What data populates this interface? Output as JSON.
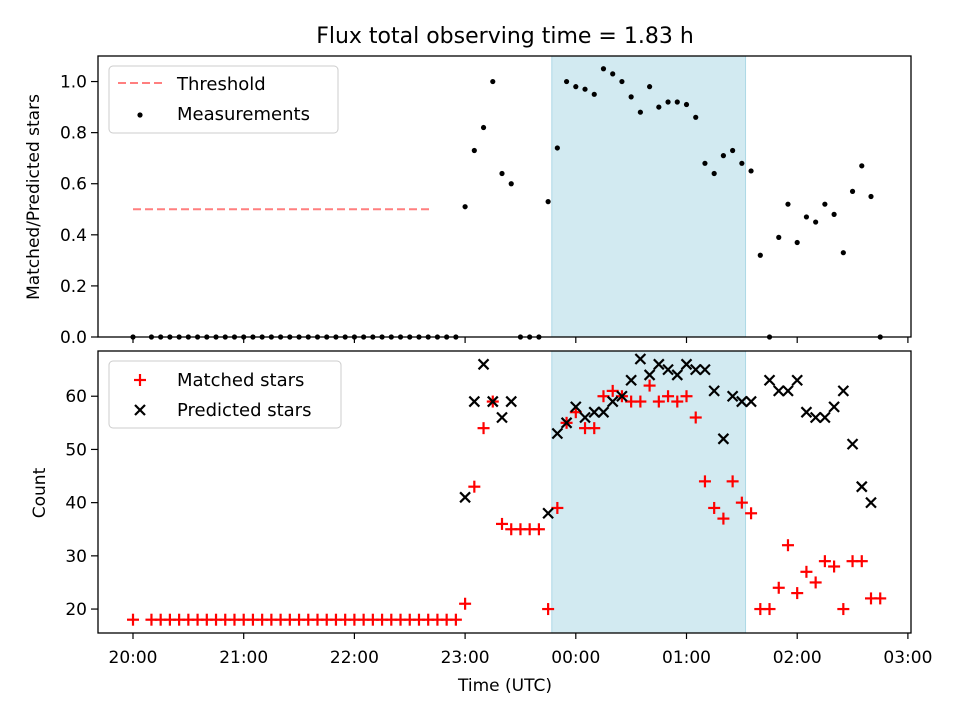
{
  "title": "Flux total observing time = 1.83 h",
  "colors": {
    "threshold": "#ff7f7f",
    "shade": "#add8e6",
    "matched": "#ff0000",
    "predicted": "#000000",
    "measurement": "#000000"
  },
  "shaded_interval": [
    "23:47",
    "01:32"
  ],
  "chart_data": [
    {
      "type": "scatter",
      "ylabel": "Matched/Predicted stars",
      "xlabel": "",
      "ylim": [
        0,
        1.1
      ],
      "yticks": [
        "0.0",
        "0.2",
        "0.4",
        "0.6",
        "0.8",
        "1.0"
      ],
      "legend": {
        "placement": "top-left",
        "entries": [
          "Threshold",
          "Measurements"
        ]
      },
      "series": [
        {
          "name": "Threshold",
          "kind": "dashed-line",
          "x": [
            "20:00",
            "22:42"
          ],
          "y": [
            0.5,
            0.5
          ]
        },
        {
          "name": "Measurements",
          "kind": "dots",
          "x": [
            "20:00",
            "20:10",
            "20:15",
            "20:20",
            "20:25",
            "20:30",
            "20:35",
            "20:40",
            "20:45",
            "20:50",
            "20:55",
            "21:00",
            "21:05",
            "21:10",
            "21:15",
            "21:20",
            "21:25",
            "21:30",
            "21:35",
            "21:40",
            "21:45",
            "21:50",
            "21:55",
            "22:00",
            "22:05",
            "22:10",
            "22:15",
            "22:20",
            "22:25",
            "22:30",
            "22:35",
            "22:40",
            "22:45",
            "22:50",
            "22:55",
            "23:00",
            "23:05",
            "23:10",
            "23:15",
            "23:20",
            "23:25",
            "23:30",
            "23:35",
            "23:40",
            "23:45",
            "23:50",
            "23:55",
            "00:00",
            "00:05",
            "00:10",
            "00:15",
            "00:20",
            "00:25",
            "00:30",
            "00:35",
            "00:40",
            "00:45",
            "00:50",
            "00:55",
            "01:00",
            "01:05",
            "01:10",
            "01:15",
            "01:20",
            "01:25",
            "01:30",
            "01:35",
            "01:40",
            "01:45",
            "01:50",
            "01:55",
            "02:00",
            "02:05",
            "02:10",
            "02:15",
            "02:20",
            "02:25",
            "02:30",
            "02:35",
            "02:40",
            "02:45"
          ],
          "y": [
            0,
            0,
            0,
            0,
            0,
            0,
            0,
            0,
            0,
            0,
            0,
            0,
            0,
            0,
            0,
            0,
            0,
            0,
            0,
            0,
            0,
            0,
            0,
            0,
            0,
            0,
            0,
            0,
            0,
            0,
            0,
            0,
            0,
            0,
            0,
            0.51,
            0.73,
            0.82,
            1.0,
            0.64,
            0.6,
            0,
            0,
            0,
            0.53,
            0.74,
            1.0,
            0.98,
            0.97,
            0.95,
            1.05,
            1.03,
            1.0,
            0.94,
            0.88,
            0.98,
            0.9,
            0.92,
            0.92,
            0.91,
            0.86,
            0.68,
            0.64,
            0.71,
            0.73,
            0.68,
            0.65,
            0.32,
            0,
            0.39,
            0.52,
            0.37,
            0.47,
            0.45,
            0.52,
            0.48,
            0.33,
            0.57,
            0.67,
            0.55,
            0
          ]
        }
      ]
    },
    {
      "type": "scatter",
      "ylabel": "Count",
      "xlabel": "Time (UTC)",
      "ylim": [
        15.5,
        68.5
      ],
      "yticks": [
        "20",
        "30",
        "40",
        "50",
        "60"
      ],
      "xticks": [
        "20:00",
        "21:00",
        "22:00",
        "23:00",
        "00:00",
        "01:00",
        "02:00",
        "03:00"
      ],
      "legend": {
        "placement": "top-left",
        "entries": [
          "Matched stars",
          "Predicted stars"
        ]
      },
      "series": [
        {
          "name": "Matched stars",
          "marker": "plus",
          "x": [
            "20:00",
            "20:10",
            "20:15",
            "20:20",
            "20:25",
            "20:30",
            "20:35",
            "20:40",
            "20:45",
            "20:50",
            "20:55",
            "21:00",
            "21:05",
            "21:10",
            "21:15",
            "21:20",
            "21:25",
            "21:30",
            "21:35",
            "21:40",
            "21:45",
            "21:50",
            "21:55",
            "22:00",
            "22:05",
            "22:10",
            "22:15",
            "22:20",
            "22:25",
            "22:30",
            "22:35",
            "22:40",
            "22:45",
            "22:50",
            "22:55",
            "23:00",
            "23:05",
            "23:10",
            "23:15",
            "23:20",
            "23:25",
            "23:30",
            "23:35",
            "23:40",
            "23:45",
            "23:50",
            "23:55",
            "00:00",
            "00:05",
            "00:10",
            "00:15",
            "00:20",
            "00:25",
            "00:30",
            "00:35",
            "00:40",
            "00:45",
            "00:50",
            "00:55",
            "01:00",
            "01:05",
            "01:10",
            "01:15",
            "01:20",
            "01:25",
            "01:30",
            "01:35",
            "01:40",
            "01:45",
            "01:50",
            "01:55",
            "02:00",
            "02:05",
            "02:10",
            "02:15",
            "02:20",
            "02:25",
            "02:30",
            "02:35",
            "02:40",
            "02:45"
          ],
          "y": [
            18,
            18,
            18,
            18,
            18,
            18,
            18,
            18,
            18,
            18,
            18,
            18,
            18,
            18,
            18,
            18,
            18,
            18,
            18,
            18,
            18,
            18,
            18,
            18,
            18,
            18,
            18,
            18,
            18,
            18,
            18,
            18,
            18,
            18,
            18,
            21,
            43,
            54,
            59,
            36,
            35,
            35,
            35,
            35,
            20,
            39,
            55,
            57,
            54,
            54,
            60,
            61,
            60,
            59,
            59,
            62,
            59,
            60,
            59,
            60,
            56,
            44,
            39,
            37,
            44,
            40,
            38,
            20,
            20,
            24,
            32,
            23,
            27,
            25,
            29,
            28,
            20,
            29,
            29,
            22,
            22
          ]
        },
        {
          "name": "Predicted stars",
          "marker": "x",
          "x": [
            "23:00",
            "23:05",
            "23:10",
            "23:15",
            "23:20",
            "23:25",
            "23:45",
            "23:50",
            "23:55",
            "00:00",
            "00:05",
            "00:10",
            "00:15",
            "00:20",
            "00:25",
            "00:30",
            "00:35",
            "00:40",
            "00:45",
            "00:50",
            "00:55",
            "01:00",
            "01:05",
            "01:10",
            "01:15",
            "01:20",
            "01:25",
            "01:30",
            "01:35",
            "01:45",
            "01:50",
            "01:55",
            "02:00",
            "02:05",
            "02:10",
            "02:15",
            "02:20",
            "02:25",
            "02:30",
            "02:35",
            "02:40"
          ],
          "y": [
            41,
            59,
            66,
            59,
            56,
            59,
            38,
            53,
            55,
            58,
            56,
            57,
            57,
            59,
            60,
            63,
            67,
            64,
            66,
            65,
            64,
            66,
            65,
            65,
            61,
            52,
            60,
            59,
            59,
            63,
            61,
            61,
            63,
            57,
            56,
            56,
            58,
            61,
            51,
            43,
            40
          ]
        }
      ]
    }
  ]
}
